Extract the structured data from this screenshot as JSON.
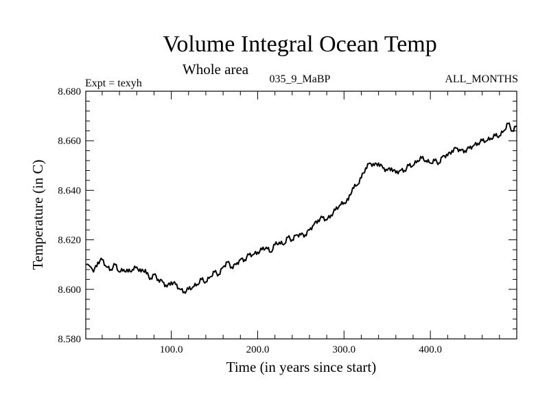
{
  "chart_data": {
    "type": "line",
    "title": "Volume Integral Ocean Temp",
    "subtitle": "Whole area",
    "annotations": {
      "experiment": "Expt = texyh",
      "run": "035_9_MaBP",
      "months": "ALL_MONTHS"
    },
    "xlabel": "Time (in years since start)",
    "ylabel": "Temperature (in C)",
    "xlim": [
      1,
      500
    ],
    "ylim": [
      8.58,
      8.68
    ],
    "x_ticks": [
      100,
      200,
      300,
      400
    ],
    "x_tick_labels": [
      "100.0",
      "200.0",
      "300.0",
      "400.0"
    ],
    "y_ticks": [
      8.58,
      8.6,
      8.62,
      8.64,
      8.66,
      8.68
    ],
    "y_tick_labels": [
      "8.580",
      "8.600",
      "8.620",
      "8.640",
      "8.660",
      "8.680"
    ],
    "grid": false,
    "legend": "none",
    "series": [
      {
        "color": "#000000",
        "x": [
          1,
          10,
          15,
          20,
          25,
          30,
          35,
          40,
          45,
          50,
          55,
          60,
          65,
          70,
          75,
          80,
          85,
          90,
          95,
          100,
          105,
          110,
          115,
          120,
          125,
          130,
          135,
          140,
          145,
          150,
          155,
          160,
          165,
          170,
          175,
          180,
          185,
          190,
          195,
          200,
          205,
          210,
          215,
          220,
          225,
          230,
          235,
          240,
          245,
          250,
          255,
          260,
          265,
          270,
          275,
          280,
          285,
          290,
          295,
          300,
          305,
          310,
          315,
          320,
          325,
          330,
          335,
          340,
          345,
          350,
          355,
          360,
          365,
          370,
          375,
          380,
          385,
          390,
          395,
          400,
          405,
          410,
          415,
          420,
          425,
          430,
          435,
          440,
          445,
          450,
          455,
          460,
          465,
          470,
          475,
          480,
          485,
          490,
          495,
          500
        ],
        "y": [
          8.61,
          8.607,
          8.611,
          8.612,
          8.609,
          8.608,
          8.61,
          8.607,
          8.608,
          8.607,
          8.608,
          8.609,
          8.607,
          8.608,
          8.604,
          8.606,
          8.604,
          8.603,
          8.601,
          8.603,
          8.602,
          8.6,
          8.599,
          8.6,
          8.601,
          8.602,
          8.604,
          8.603,
          8.605,
          8.607,
          8.606,
          8.609,
          8.611,
          8.609,
          8.61,
          8.612,
          8.612,
          8.614,
          8.614,
          8.615,
          8.616,
          8.617,
          8.615,
          8.618,
          8.619,
          8.618,
          8.621,
          8.62,
          8.622,
          8.622,
          8.622,
          8.624,
          8.626,
          8.628,
          8.629,
          8.628,
          8.63,
          8.632,
          8.634,
          8.635,
          8.636,
          8.641,
          8.642,
          8.645,
          8.649,
          8.651,
          8.65,
          8.651,
          8.649,
          8.648,
          8.649,
          8.647,
          8.648,
          8.648,
          8.65,
          8.65,
          8.652,
          8.653,
          8.652,
          8.651,
          8.652,
          8.651,
          8.654,
          8.654,
          8.656,
          8.657,
          8.656,
          8.656,
          8.657,
          8.658,
          8.659,
          8.66,
          8.66,
          8.661,
          8.662,
          8.662,
          8.664,
          8.667,
          8.664,
          8.666
        ]
      }
    ]
  }
}
